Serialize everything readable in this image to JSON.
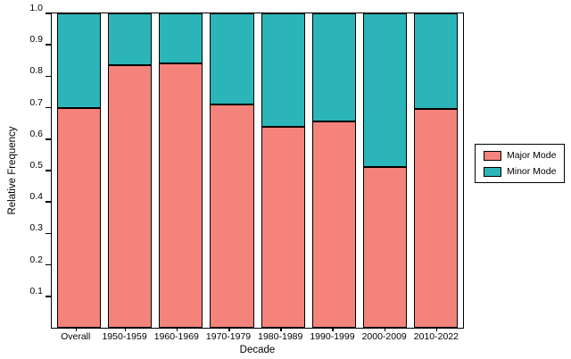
{
  "chart_data": {
    "type": "bar",
    "stacked": true,
    "title": "",
    "xlabel": "Decade",
    "ylabel": "Relative Frequency",
    "categories": [
      "Overall",
      "1950-1959",
      "1960-1969",
      "1970-1979",
      "1980-1989",
      "1990-1999",
      "2000-2009",
      "2010-2022"
    ],
    "series": [
      {
        "name": "Major Mode",
        "color": "#F4837B",
        "values": [
          0.7,
          0.835,
          0.84,
          0.71,
          0.64,
          0.655,
          0.51,
          0.695
        ]
      },
      {
        "name": "Minor Mode",
        "color": "#2CB5B8",
        "values": [
          0.3,
          0.165,
          0.16,
          0.29,
          0.36,
          0.345,
          0.49,
          0.305
        ]
      }
    ],
    "ylim": [
      0,
      1.0
    ],
    "yticks": [
      0.1,
      0.2,
      0.3,
      0.4,
      0.5,
      0.6,
      0.7,
      0.8,
      0.9,
      1.0
    ],
    "grid": false,
    "legend_position": "right"
  }
}
